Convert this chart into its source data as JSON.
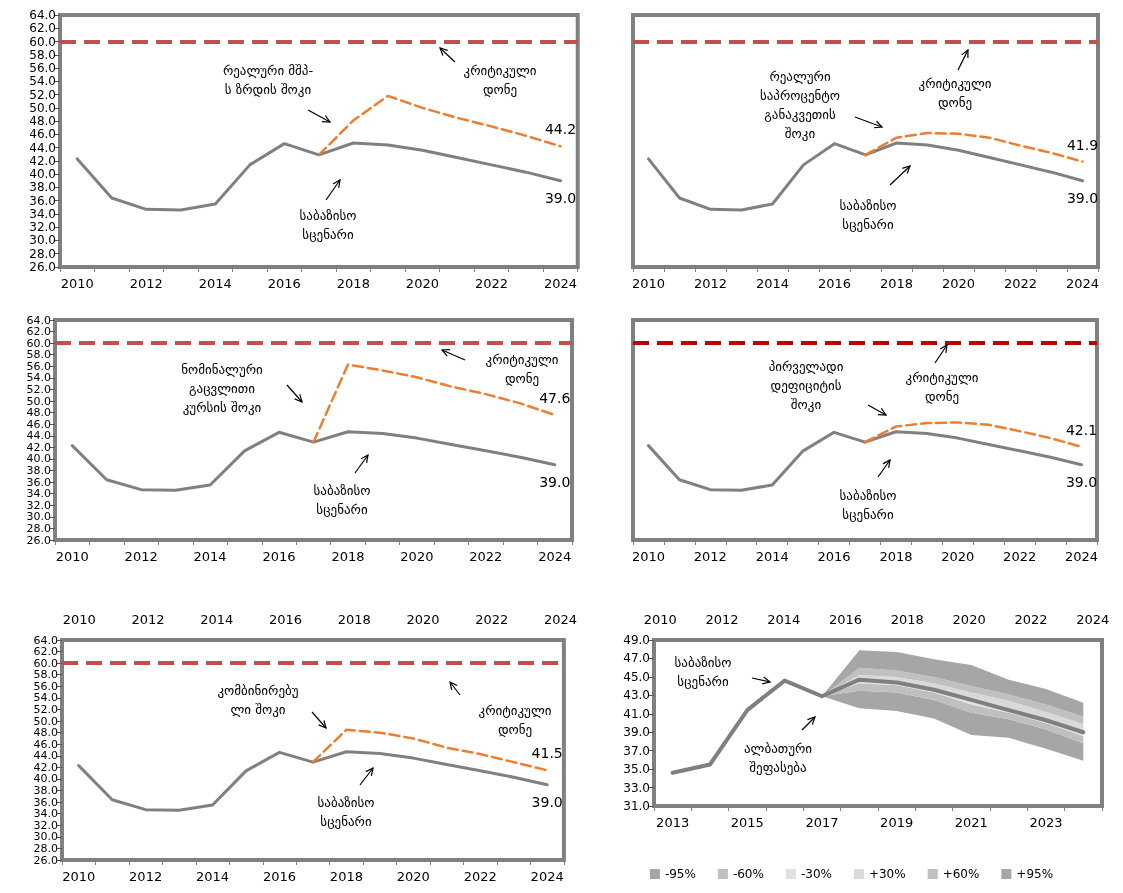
{
  "chart_data": [
    {
      "type": "line",
      "categories": [
        "2010",
        null,
        "2012",
        null,
        "2014",
        null,
        "2016",
        null,
        "2018",
        null,
        "2020",
        null,
        "2022",
        null,
        "2024"
      ],
      "ylim": [
        26,
        64
      ],
      "yticks": [
        {
          "value": 26,
          "label": "26.0"
        },
        {
          "value": 28,
          "label": "28.0"
        },
        {
          "value": 30,
          "label": "30.0"
        },
        {
          "value": 32,
          "label": "32.0"
        },
        {
          "value": 34,
          "label": "34.0"
        },
        {
          "value": 36,
          "label": "36.0"
        },
        {
          "value": 38,
          "label": "38.0"
        },
        {
          "value": 40,
          "label": "40.0"
        },
        {
          "value": 42,
          "label": "42.0"
        },
        {
          "value": 44,
          "label": "44.0"
        },
        {
          "value": 46,
          "label": "46.0"
        },
        {
          "value": 48,
          "label": "48.0"
        },
        {
          "value": 50,
          "label": "50.0"
        },
        {
          "value": 52,
          "label": "52.0"
        },
        {
          "value": 54,
          "label": "54.0"
        },
        {
          "value": 56,
          "label": "56.0"
        },
        {
          "value": 58,
          "label": "58.0"
        },
        {
          "value": 60,
          "label": "60.0"
        },
        {
          "value": 62,
          "label": "62.0"
        },
        {
          "value": 64,
          "label": "64.0"
        }
      ],
      "series": [
        {
          "color": "#808080",
          "values": [
            42.3,
            36.4,
            34.7,
            34.6,
            35.5,
            41.4,
            44.6,
            42.9,
            44.7,
            44.4,
            43.6,
            42.5,
            41.4,
            40.3,
            39.0
          ],
          "value_labels": [
            null,
            null,
            null,
            null,
            null,
            null,
            null,
            null,
            null,
            null,
            null,
            null,
            null,
            null,
            "39.0"
          ]
        },
        {
          "color": "#ed7d31",
          "line_style": "dashed",
          "values": [
            null,
            null,
            null,
            null,
            null,
            null,
            null,
            42.9,
            48.1,
            51.8,
            50.0,
            48.5,
            47.2,
            45.8,
            44.2
          ],
          "value_labels": [
            null,
            null,
            null,
            null,
            null,
            null,
            null,
            null,
            null,
            null,
            null,
            null,
            null,
            null,
            "44.2"
          ]
        }
      ],
      "ref_lines": [
        {
          "axis": "y",
          "value": 60,
          "color": "#c0504d",
          "line_style": "dashed"
        }
      ],
      "annotations": [
        "რეალური მშპ-\nს ზრდის შოკი",
        "კრიტიკული\nდონე",
        "საბაზისო\nსცენარი"
      ]
    },
    {
      "type": "line",
      "tick_labels": "x",
      "categories": [
        "2010",
        null,
        "2012",
        null,
        "2014",
        null,
        "2016",
        null,
        "2018",
        null,
        "2020",
        null,
        "2022",
        null,
        "2024"
      ],
      "ylim": [
        26,
        64
      ],
      "series": [
        {
          "color": "#808080",
          "values": [
            42.3,
            36.4,
            34.7,
            34.6,
            35.5,
            41.4,
            44.6,
            42.9,
            44.7,
            44.4,
            43.6,
            42.5,
            41.4,
            40.3,
            39.0
          ],
          "value_labels": [
            null,
            null,
            null,
            null,
            null,
            null,
            null,
            null,
            null,
            null,
            null,
            null,
            null,
            null,
            "39.0"
          ]
        },
        {
          "color": "#ed7d31",
          "line_style": "dashed",
          "values": [
            null,
            null,
            null,
            null,
            null,
            null,
            null,
            42.9,
            45.5,
            46.2,
            46.1,
            45.5,
            44.3,
            43.2,
            41.9
          ],
          "value_labels": [
            null,
            null,
            null,
            null,
            null,
            null,
            null,
            null,
            null,
            null,
            null,
            null,
            null,
            null,
            "41.9"
          ]
        }
      ],
      "ref_lines": [
        {
          "axis": "y",
          "value": 60,
          "color": "#c0504d",
          "line_style": "dashed"
        }
      ],
      "annotations": [
        "რეალური\nსაპროცენტო\nგანაკვეთის\nშოკი",
        "კრიტიკული\nდონე",
        "საბაზისო\nსცენარი"
      ]
    },
    {
      "type": "line",
      "categories": [
        "2010",
        null,
        "2012",
        null,
        "2014",
        null,
        "2016",
        null,
        "2018",
        null,
        "2020",
        null,
        "2022",
        null,
        "2024"
      ],
      "ylim": [
        26,
        64
      ],
      "yticks": [
        {
          "value": 26,
          "label": "26.0"
        },
        {
          "value": 28,
          "label": "28.0"
        },
        {
          "value": 30,
          "label": "30.0"
        },
        {
          "value": 32,
          "label": "32.0"
        },
        {
          "value": 34,
          "label": "34.0"
        },
        {
          "value": 36,
          "label": "36.0"
        },
        {
          "value": 38,
          "label": "38.0"
        },
        {
          "value": 40,
          "label": "40.0"
        },
        {
          "value": 42,
          "label": "42.0"
        },
        {
          "value": 44,
          "label": "44.0"
        },
        {
          "value": 46,
          "label": "46.0"
        },
        {
          "value": 48,
          "label": "48.0"
        },
        {
          "value": 50,
          "label": "50.0"
        },
        {
          "value": 52,
          "label": "52.0"
        },
        {
          "value": 54,
          "label": "54.0"
        },
        {
          "value": 56,
          "label": "56.0"
        },
        {
          "value": 58,
          "label": "58.0"
        },
        {
          "value": 60,
          "label": "60.0"
        },
        {
          "value": 62,
          "label": "62.0"
        },
        {
          "value": 64,
          "label": "64.0"
        }
      ],
      "series": [
        {
          "color": "#808080",
          "values": [
            42.3,
            36.4,
            34.7,
            34.6,
            35.5,
            41.4,
            44.6,
            42.9,
            44.7,
            44.4,
            43.6,
            42.5,
            41.4,
            40.3,
            39.0
          ],
          "value_labels": [
            null,
            null,
            null,
            null,
            null,
            null,
            null,
            null,
            null,
            null,
            null,
            null,
            null,
            null,
            "39.0"
          ]
        },
        {
          "color": "#ed7d31",
          "line_style": "dashed",
          "values": [
            null,
            null,
            null,
            null,
            null,
            null,
            null,
            42.9,
            56.3,
            55.3,
            54.1,
            52.5,
            51.2,
            49.6,
            47.6
          ],
          "value_labels": [
            null,
            null,
            null,
            null,
            null,
            null,
            null,
            null,
            null,
            null,
            null,
            null,
            null,
            null,
            "47.6"
          ]
        }
      ],
      "ref_lines": [
        {
          "axis": "y",
          "value": 60,
          "color": "#c0504d",
          "line_style": "dashed"
        }
      ],
      "annotations": [
        "ნომინალური\nგაცვლითი\nკურსის შოკი",
        "კრიტიკული\nდონე",
        "საბაზისო\nსცენარი"
      ]
    },
    {
      "type": "line",
      "tick_labels": "x",
      "categories": [
        "2010",
        null,
        "2012",
        null,
        "2014",
        null,
        "2016",
        null,
        "2018",
        null,
        "2020",
        null,
        "2022",
        null,
        "2024"
      ],
      "ylim": [
        26,
        64
      ],
      "series": [
        {
          "color": "#808080",
          "values": [
            42.3,
            36.4,
            34.7,
            34.6,
            35.5,
            41.4,
            44.6,
            42.9,
            44.7,
            44.4,
            43.6,
            42.5,
            41.4,
            40.3,
            39.0
          ],
          "value_labels": [
            null,
            null,
            null,
            null,
            null,
            null,
            null,
            null,
            null,
            null,
            null,
            null,
            null,
            null,
            "39.0"
          ]
        },
        {
          "color": "#ed7d31",
          "line_style": "dashed",
          "values": [
            null,
            null,
            null,
            null,
            null,
            null,
            null,
            42.9,
            45.6,
            46.2,
            46.3,
            45.9,
            44.8,
            43.6,
            42.1
          ],
          "value_labels": [
            null,
            null,
            null,
            null,
            null,
            null,
            null,
            null,
            null,
            null,
            null,
            null,
            null,
            null,
            "42.1"
          ]
        }
      ],
      "ref_lines": [
        {
          "axis": "y",
          "value": 60,
          "color": "#c00000",
          "line_style": "dashed"
        }
      ],
      "annotations": [
        "პირველადი\nდეფიციტის\nშოკი",
        "კრიტიკული\nდონე",
        "საბაზისო\nსცენარი"
      ]
    },
    {
      "type": "line",
      "categories": [
        "2010",
        null,
        "2012",
        null,
        "2014",
        null,
        "2016",
        null,
        "2018",
        null,
        "2020",
        null,
        "2022",
        null,
        "2024"
      ],
      "ylim": [
        26,
        64
      ],
      "yticks": [
        {
          "value": 26,
          "label": "26.0"
        },
        {
          "value": 28,
          "label": "28.0"
        },
        {
          "value": 30,
          "label": "30.0"
        },
        {
          "value": 32,
          "label": "32.0"
        },
        {
          "value": 34,
          "label": "34.0"
        },
        {
          "value": 36,
          "label": "36.0"
        },
        {
          "value": 38,
          "label": "38.0"
        },
        {
          "value": 40,
          "label": "40.0"
        },
        {
          "value": 42,
          "label": "42.0"
        },
        {
          "value": 44,
          "label": "44.0"
        },
        {
          "value": 46,
          "label": "46.0"
        },
        {
          "value": 48,
          "label": "48.0"
        },
        {
          "value": 50,
          "label": "50.0"
        },
        {
          "value": 52,
          "label": "52.0"
        },
        {
          "value": 54,
          "label": "54.0"
        },
        {
          "value": 56,
          "label": "56.0"
        },
        {
          "value": 58,
          "label": "58.0"
        },
        {
          "value": 60,
          "label": "60.0"
        },
        {
          "value": 62,
          "label": "62.0"
        },
        {
          "value": 64,
          "label": "64.0"
        }
      ],
      "x2lim": [
        2009.5,
        2024.1
      ],
      "x2ticks": [
        2010,
        2012,
        2014,
        2016,
        2018,
        2020,
        2022,
        2024
      ],
      "series": [
        {
          "color": "#808080",
          "values": [
            42.3,
            36.4,
            34.7,
            34.6,
            35.5,
            41.4,
            44.6,
            42.9,
            44.7,
            44.4,
            43.6,
            42.5,
            41.4,
            40.3,
            39.0
          ],
          "value_labels": [
            null,
            null,
            null,
            null,
            null,
            null,
            null,
            null,
            null,
            null,
            null,
            null,
            null,
            null,
            "39.0"
          ]
        },
        {
          "color": "#ed7d31",
          "line_style": "dashed",
          "values": [
            null,
            null,
            null,
            null,
            null,
            null,
            null,
            42.9,
            48.5,
            48.0,
            47.0,
            45.4,
            44.3,
            42.9,
            41.5
          ],
          "value_labels": [
            null,
            null,
            null,
            null,
            null,
            null,
            null,
            null,
            null,
            null,
            null,
            null,
            null,
            null,
            "41.5"
          ]
        }
      ],
      "ref_lines": [
        {
          "axis": "y",
          "value": 60,
          "color": "#c0504d",
          "line_style": "dashed"
        }
      ],
      "annotations": [
        "კომბინირებუ\nლი შოკი",
        "კრიტიკული\nდონე",
        "საბაზისო\nსცენარი"
      ]
    },
    {
      "type": "line",
      "categories": [
        "2013",
        null,
        "2015",
        null,
        "2017",
        null,
        "2019",
        null,
        "2021",
        null,
        "2023",
        null
      ],
      "ylim": [
        31,
        49
      ],
      "yticks": [
        {
          "value": 31,
          "label": "31.0"
        },
        {
          "value": 33,
          "label": "33.0"
        },
        {
          "value": 35,
          "label": "35.0"
        },
        {
          "value": 37,
          "label": "37.0"
        },
        {
          "value": 39,
          "label": "39.0"
        },
        {
          "value": 41,
          "label": "41.0"
        },
        {
          "value": 43,
          "label": "43.0"
        },
        {
          "value": 45,
          "label": "45.0"
        },
        {
          "value": 47,
          "label": "47.0"
        },
        {
          "value": 49,
          "label": "49.0"
        }
      ],
      "x2lim": [
        2009.8,
        2024.3
      ],
      "x2ticks": [
        2010,
        2012,
        2014,
        2016,
        2018,
        2020,
        2022,
        2024
      ],
      "legend": "bottom",
      "series": [
        {
          "name": "-95%",
          "type": "area",
          "color": "#a6a6a6",
          "values": [
            null,
            null,
            null,
            null,
            null,
            null,
            null,
            null,
            null,
            null,
            null,
            null
          ],
          "lower": [
            null,
            null,
            null,
            null,
            42.9,
            41.6,
            41.3,
            40.5,
            38.7,
            38.4,
            37.2,
            35.9
          ],
          "upper": [
            null,
            null,
            null,
            null,
            42.9,
            43.5,
            43.3,
            42.5,
            41.1,
            40.4,
            39.3,
            37.8
          ]
        },
        {
          "name": "-60%",
          "type": "area",
          "color": "#bfbfbf",
          "values": [
            null,
            null,
            null,
            null,
            null,
            null,
            null,
            null,
            null,
            null,
            null,
            null
          ],
          "lower": [
            null,
            null,
            null,
            null,
            42.9,
            43.5,
            43.3,
            42.5,
            41.1,
            40.4,
            39.3,
            37.8
          ],
          "upper": [
            null,
            null,
            null,
            null,
            42.9,
            44.3,
            44.1,
            43.3,
            42.0,
            41.1,
            40.0,
            38.6
          ]
        },
        {
          "name": "-30%",
          "type": "area",
          "color": "#e0e0e0",
          "values": [
            null,
            null,
            null,
            null,
            null,
            null,
            null,
            null,
            null,
            null,
            null,
            null
          ],
          "lower": [
            null,
            null,
            null,
            null,
            42.9,
            44.3,
            44.1,
            43.3,
            42.0,
            41.1,
            40.0,
            38.6
          ],
          "upper": [
            null,
            null,
            null,
            null,
            42.9,
            44.7,
            44.4,
            43.6,
            42.5,
            41.4,
            40.3,
            39.0
          ]
        },
        {
          "name": "+30%",
          "type": "area",
          "color": "#d9d9d9",
          "values": [
            null,
            null,
            null,
            null,
            null,
            null,
            null,
            null,
            null,
            null,
            null,
            null
          ],
          "lower": [
            null,
            null,
            null,
            null,
            42.9,
            44.7,
            44.4,
            43.6,
            42.5,
            41.4,
            40.3,
            39.0
          ],
          "upper": [
            null,
            null,
            null,
            null,
            42.9,
            45.2,
            45.0,
            44.3,
            43.3,
            42.4,
            41.2,
            39.9
          ]
        },
        {
          "name": "+60%",
          "type": "area",
          "color": "#c0c0c0",
          "values": [
            null,
            null,
            null,
            null,
            null,
            null,
            null,
            null,
            null,
            null,
            null,
            null
          ],
          "lower": [
            null,
            null,
            null,
            null,
            42.9,
            45.2,
            45.0,
            44.3,
            43.3,
            42.4,
            41.2,
            39.9
          ],
          "upper": [
            null,
            null,
            null,
            null,
            42.9,
            46.0,
            45.7,
            45.0,
            44.0,
            43.1,
            42.0,
            40.7
          ]
        },
        {
          "name": "+95%",
          "type": "area",
          "color": "#a6a6a6",
          "values": [
            null,
            null,
            null,
            null,
            null,
            null,
            null,
            null,
            null,
            null,
            null,
            null
          ],
          "lower": [
            null,
            null,
            null,
            null,
            42.9,
            46.0,
            45.7,
            45.0,
            44.0,
            43.1,
            42.0,
            40.7
          ],
          "upper": [
            null,
            null,
            null,
            null,
            42.9,
            47.9,
            47.7,
            46.9,
            46.3,
            44.7,
            43.7,
            42.2
          ]
        },
        {
          "color": "#7f7f7f",
          "values": [
            34.6,
            35.5,
            41.4,
            44.6,
            42.9,
            44.7,
            44.4,
            43.6,
            42.5,
            41.4,
            40.3,
            39.0
          ]
        }
      ],
      "annotations": [
        "საბაზისო\nსცენარი",
        "ალბათური\nშეფასება"
      ]
    }
  ]
}
